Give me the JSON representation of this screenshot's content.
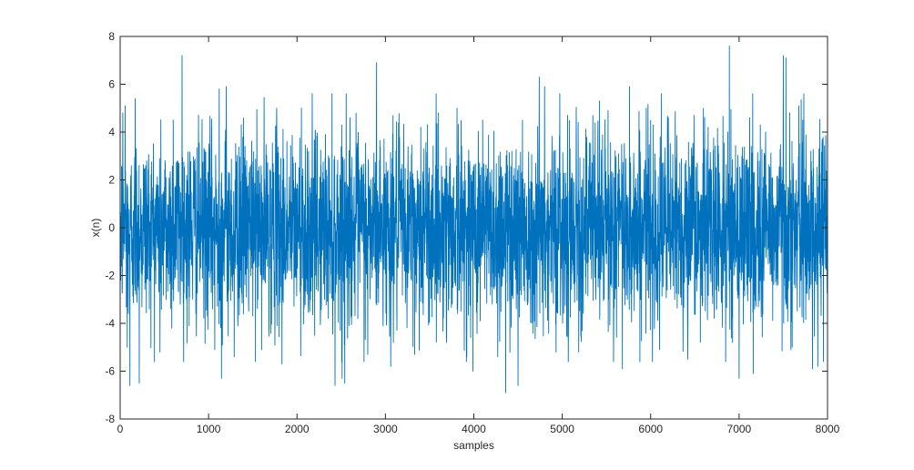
{
  "chart_data": {
    "type": "line",
    "title": "",
    "xlabel": "samples",
    "ylabel": "x(n)",
    "xlim": [
      0,
      8000
    ],
    "ylim": [
      -8,
      8
    ],
    "xticks": [
      0,
      1000,
      2000,
      3000,
      4000,
      5000,
      6000,
      7000,
      8000
    ],
    "yticks": [
      -8,
      -6,
      -4,
      -2,
      0,
      2,
      4,
      6,
      8
    ],
    "grid": false,
    "legend": "none",
    "series": [
      {
        "color": "#0072BD",
        "sample_count": 8000,
        "distribution": "random noise, approx. zero mean, std about 2",
        "min": -6.9,
        "max": 7.6,
        "points": [
          [
            0,
            3.1
          ],
          [
            30,
            4.8
          ],
          [
            55,
            5.1
          ],
          [
            80,
            -5.0
          ],
          [
            110,
            -6.6
          ],
          [
            170,
            5.4
          ],
          [
            215,
            -6.5
          ],
          [
            450,
            -5.2
          ],
          [
            600,
            4.5
          ],
          [
            700,
            7.2
          ],
          [
            780,
            -4.1
          ],
          [
            1070,
            -5.1
          ],
          [
            1120,
            5.8
          ],
          [
            1145,
            -6.3
          ],
          [
            1200,
            5.9
          ],
          [
            1290,
            -5.4
          ],
          [
            1370,
            4.3
          ],
          [
            1600,
            -5.1
          ],
          [
            1770,
            5.0
          ],
          [
            1830,
            -5.7
          ],
          [
            2050,
            5.0
          ],
          [
            2200,
            -4.5
          ],
          [
            2430,
            -6.6
          ],
          [
            2510,
            -6.3
          ],
          [
            2540,
            -6.5
          ],
          [
            2600,
            4.6
          ],
          [
            2800,
            -5.3
          ],
          [
            2900,
            6.9
          ],
          [
            3060,
            -5.8
          ],
          [
            3330,
            -5.3
          ],
          [
            3400,
            4.2
          ],
          [
            3600,
            4.8
          ],
          [
            3690,
            -4.8
          ],
          [
            3810,
            5.0
          ],
          [
            3990,
            -6.0
          ],
          [
            4100,
            4.5
          ],
          [
            4270,
            -5.4
          ],
          [
            4360,
            -6.9
          ],
          [
            4500,
            -6.6
          ],
          [
            4550,
            4.5
          ],
          [
            4740,
            6.3
          ],
          [
            4800,
            5.9
          ],
          [
            4930,
            -5.2
          ],
          [
            5060,
            4.7
          ],
          [
            5180,
            4.4
          ],
          [
            5420,
            5.3
          ],
          [
            5580,
            -5.6
          ],
          [
            5680,
            -5.9
          ],
          [
            5760,
            5.9
          ],
          [
            5950,
            5.0
          ],
          [
            6100,
            -5.1
          ],
          [
            6200,
            4.6
          ],
          [
            6420,
            -5.5
          ],
          [
            6490,
            4.7
          ],
          [
            6650,
            4.2
          ],
          [
            6890,
            7.6
          ],
          [
            7000,
            -6.3
          ],
          [
            7120,
            4.6
          ],
          [
            7160,
            -6.1
          ],
          [
            7300,
            4.0
          ],
          [
            7500,
            7.2
          ],
          [
            7530,
            7.1
          ],
          [
            7600,
            -5.0
          ],
          [
            7720,
            4.5
          ],
          [
            7830,
            -5.9
          ],
          [
            7890,
            -5.8
          ],
          [
            7940,
            3.7
          ],
          [
            8000,
            -1.0
          ]
        ]
      }
    ]
  }
}
